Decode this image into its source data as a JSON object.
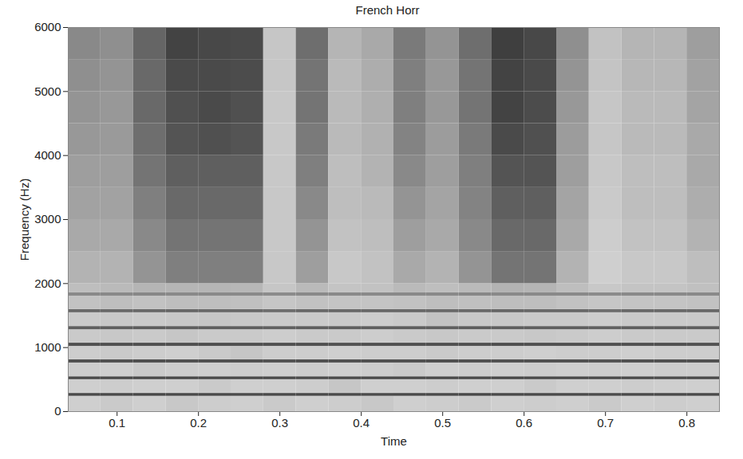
{
  "chart_data": {
    "type": "heatmap",
    "title": "French Horr",
    "x_label": "Time",
    "y_label": "Frequency (Hz)",
    "xlim": [
      0.04,
      0.84
    ],
    "ylim": [
      0,
      6000
    ],
    "xticks": [
      0.1,
      0.2,
      0.3,
      0.4,
      0.5,
      0.6,
      0.7,
      0.8
    ],
    "yticks": [
      0,
      1000,
      2000,
      3000,
      4000,
      5000,
      6000
    ],
    "zlim": [
      0,
      1
    ],
    "x_bins": [
      0.04,
      0.08,
      0.12,
      0.16,
      0.2,
      0.24,
      0.28,
      0.32,
      0.36,
      0.4,
      0.44,
      0.48,
      0.52,
      0.56,
      0.6,
      0.64,
      0.68,
      0.72,
      0.76,
      0.8,
      0.84
    ],
    "y_bins": [
      0,
      240,
      285,
      500,
      545,
      760,
      810,
      1020,
      1070,
      1280,
      1330,
      1545,
      1595,
      1805,
      1855,
      2000,
      2500,
      3000,
      3500,
      4000,
      4500,
      5000,
      5500,
      6000
    ],
    "values": [
      [
        0.12,
        0.14,
        0.12,
        0.15,
        0.13,
        0.12,
        0.14,
        0.12,
        0.13,
        0.15,
        0.12,
        0.13,
        0.14,
        0.12,
        0.13,
        0.12,
        0.14,
        0.12,
        0.13,
        0.12
      ],
      [
        0.75,
        0.75,
        0.76,
        0.75,
        0.75,
        0.74,
        0.75,
        0.75,
        0.75,
        0.74,
        0.75,
        0.75,
        0.76,
        0.75,
        0.75,
        0.75,
        0.74,
        0.75,
        0.75,
        0.75
      ],
      [
        0.12,
        0.13,
        0.12,
        0.12,
        0.14,
        0.12,
        0.12,
        0.13,
        0.16,
        0.12,
        0.12,
        0.13,
        0.12,
        0.12,
        0.14,
        0.12,
        0.12,
        0.13,
        0.12,
        0.12
      ],
      [
        0.75,
        0.75,
        0.75,
        0.76,
        0.75,
        0.75,
        0.75,
        0.74,
        0.75,
        0.75,
        0.75,
        0.75,
        0.75,
        0.76,
        0.75,
        0.75,
        0.75,
        0.75,
        0.74,
        0.75
      ],
      [
        0.13,
        0.12,
        0.14,
        0.13,
        0.12,
        0.13,
        0.12,
        0.13,
        0.12,
        0.13,
        0.14,
        0.12,
        0.13,
        0.12,
        0.13,
        0.12,
        0.13,
        0.12,
        0.13,
        0.13
      ],
      [
        0.72,
        0.72,
        0.73,
        0.72,
        0.72,
        0.72,
        0.71,
        0.72,
        0.72,
        0.72,
        0.72,
        0.73,
        0.72,
        0.72,
        0.72,
        0.72,
        0.71,
        0.72,
        0.72,
        0.72
      ],
      [
        0.13,
        0.14,
        0.13,
        0.12,
        0.14,
        0.16,
        0.13,
        0.13,
        0.12,
        0.13,
        0.13,
        0.14,
        0.13,
        0.13,
        0.12,
        0.13,
        0.13,
        0.12,
        0.13,
        0.13
      ],
      [
        0.72,
        0.72,
        0.72,
        0.72,
        0.73,
        0.72,
        0.72,
        0.72,
        0.71,
        0.72,
        0.72,
        0.72,
        0.72,
        0.73,
        0.72,
        0.72,
        0.72,
        0.72,
        0.72,
        0.71
      ],
      [
        0.14,
        0.15,
        0.14,
        0.16,
        0.14,
        0.14,
        0.13,
        0.14,
        0.14,
        0.13,
        0.14,
        0.15,
        0.14,
        0.14,
        0.15,
        0.14,
        0.13,
        0.14,
        0.14,
        0.14
      ],
      [
        0.65,
        0.65,
        0.66,
        0.65,
        0.65,
        0.65,
        0.64,
        0.65,
        0.65,
        0.65,
        0.65,
        0.65,
        0.66,
        0.65,
        0.65,
        0.65,
        0.64,
        0.65,
        0.65,
        0.65
      ],
      [
        0.14,
        0.15,
        0.14,
        0.15,
        0.16,
        0.15,
        0.14,
        0.14,
        0.14,
        0.13,
        0.14,
        0.18,
        0.15,
        0.15,
        0.14,
        0.14,
        0.13,
        0.14,
        0.14,
        0.14
      ],
      [
        0.6,
        0.6,
        0.6,
        0.61,
        0.6,
        0.6,
        0.58,
        0.6,
        0.6,
        0.6,
        0.6,
        0.6,
        0.6,
        0.61,
        0.6,
        0.6,
        0.58,
        0.6,
        0.6,
        0.6
      ],
      [
        0.18,
        0.2,
        0.18,
        0.2,
        0.2,
        0.19,
        0.16,
        0.18,
        0.17,
        0.17,
        0.18,
        0.2,
        0.19,
        0.2,
        0.2,
        0.18,
        0.16,
        0.17,
        0.17,
        0.18
      ],
      [
        0.45,
        0.45,
        0.46,
        0.45,
        0.45,
        0.45,
        0.44,
        0.45,
        0.45,
        0.45,
        0.45,
        0.45,
        0.46,
        0.45,
        0.45,
        0.45,
        0.44,
        0.45,
        0.45,
        0.45
      ],
      [
        0.2,
        0.22,
        0.24,
        0.24,
        0.24,
        0.23,
        0.16,
        0.22,
        0.17,
        0.18,
        0.22,
        0.2,
        0.22,
        0.25,
        0.24,
        0.2,
        0.15,
        0.17,
        0.17,
        0.19
      ],
      [
        0.25,
        0.25,
        0.4,
        0.5,
        0.5,
        0.5,
        0.15,
        0.35,
        0.15,
        0.18,
        0.3,
        0.25,
        0.4,
        0.55,
        0.55,
        0.25,
        0.12,
        0.15,
        0.15,
        0.2
      ],
      [
        0.3,
        0.3,
        0.45,
        0.55,
        0.55,
        0.55,
        0.15,
        0.4,
        0.18,
        0.2,
        0.35,
        0.3,
        0.45,
        0.6,
        0.6,
        0.3,
        0.13,
        0.18,
        0.18,
        0.25
      ],
      [
        0.33,
        0.33,
        0.5,
        0.6,
        0.6,
        0.6,
        0.15,
        0.45,
        0.2,
        0.22,
        0.4,
        0.32,
        0.48,
        0.65,
        0.65,
        0.32,
        0.14,
        0.2,
        0.2,
        0.28
      ],
      [
        0.35,
        0.35,
        0.55,
        0.65,
        0.65,
        0.65,
        0.15,
        0.5,
        0.2,
        0.25,
        0.45,
        0.35,
        0.5,
        0.7,
        0.7,
        0.35,
        0.15,
        0.2,
        0.2,
        0.3
      ],
      [
        0.38,
        0.37,
        0.58,
        0.7,
        0.72,
        0.7,
        0.15,
        0.52,
        0.22,
        0.26,
        0.48,
        0.36,
        0.52,
        0.75,
        0.72,
        0.36,
        0.16,
        0.22,
        0.22,
        0.3
      ],
      [
        0.4,
        0.38,
        0.6,
        0.72,
        0.75,
        0.72,
        0.15,
        0.55,
        0.22,
        0.27,
        0.5,
        0.38,
        0.55,
        0.78,
        0.74,
        0.38,
        0.16,
        0.22,
        0.22,
        0.32
      ],
      [
        0.42,
        0.4,
        0.6,
        0.75,
        0.75,
        0.74,
        0.16,
        0.55,
        0.22,
        0.28,
        0.5,
        0.38,
        0.55,
        0.78,
        0.75,
        0.4,
        0.17,
        0.23,
        0.23,
        0.33
      ],
      [
        0.45,
        0.42,
        0.62,
        0.78,
        0.76,
        0.75,
        0.16,
        0.58,
        0.24,
        0.3,
        0.52,
        0.4,
        0.58,
        0.8,
        0.76,
        0.42,
        0.18,
        0.24,
        0.24,
        0.35
      ]
    ]
  }
}
